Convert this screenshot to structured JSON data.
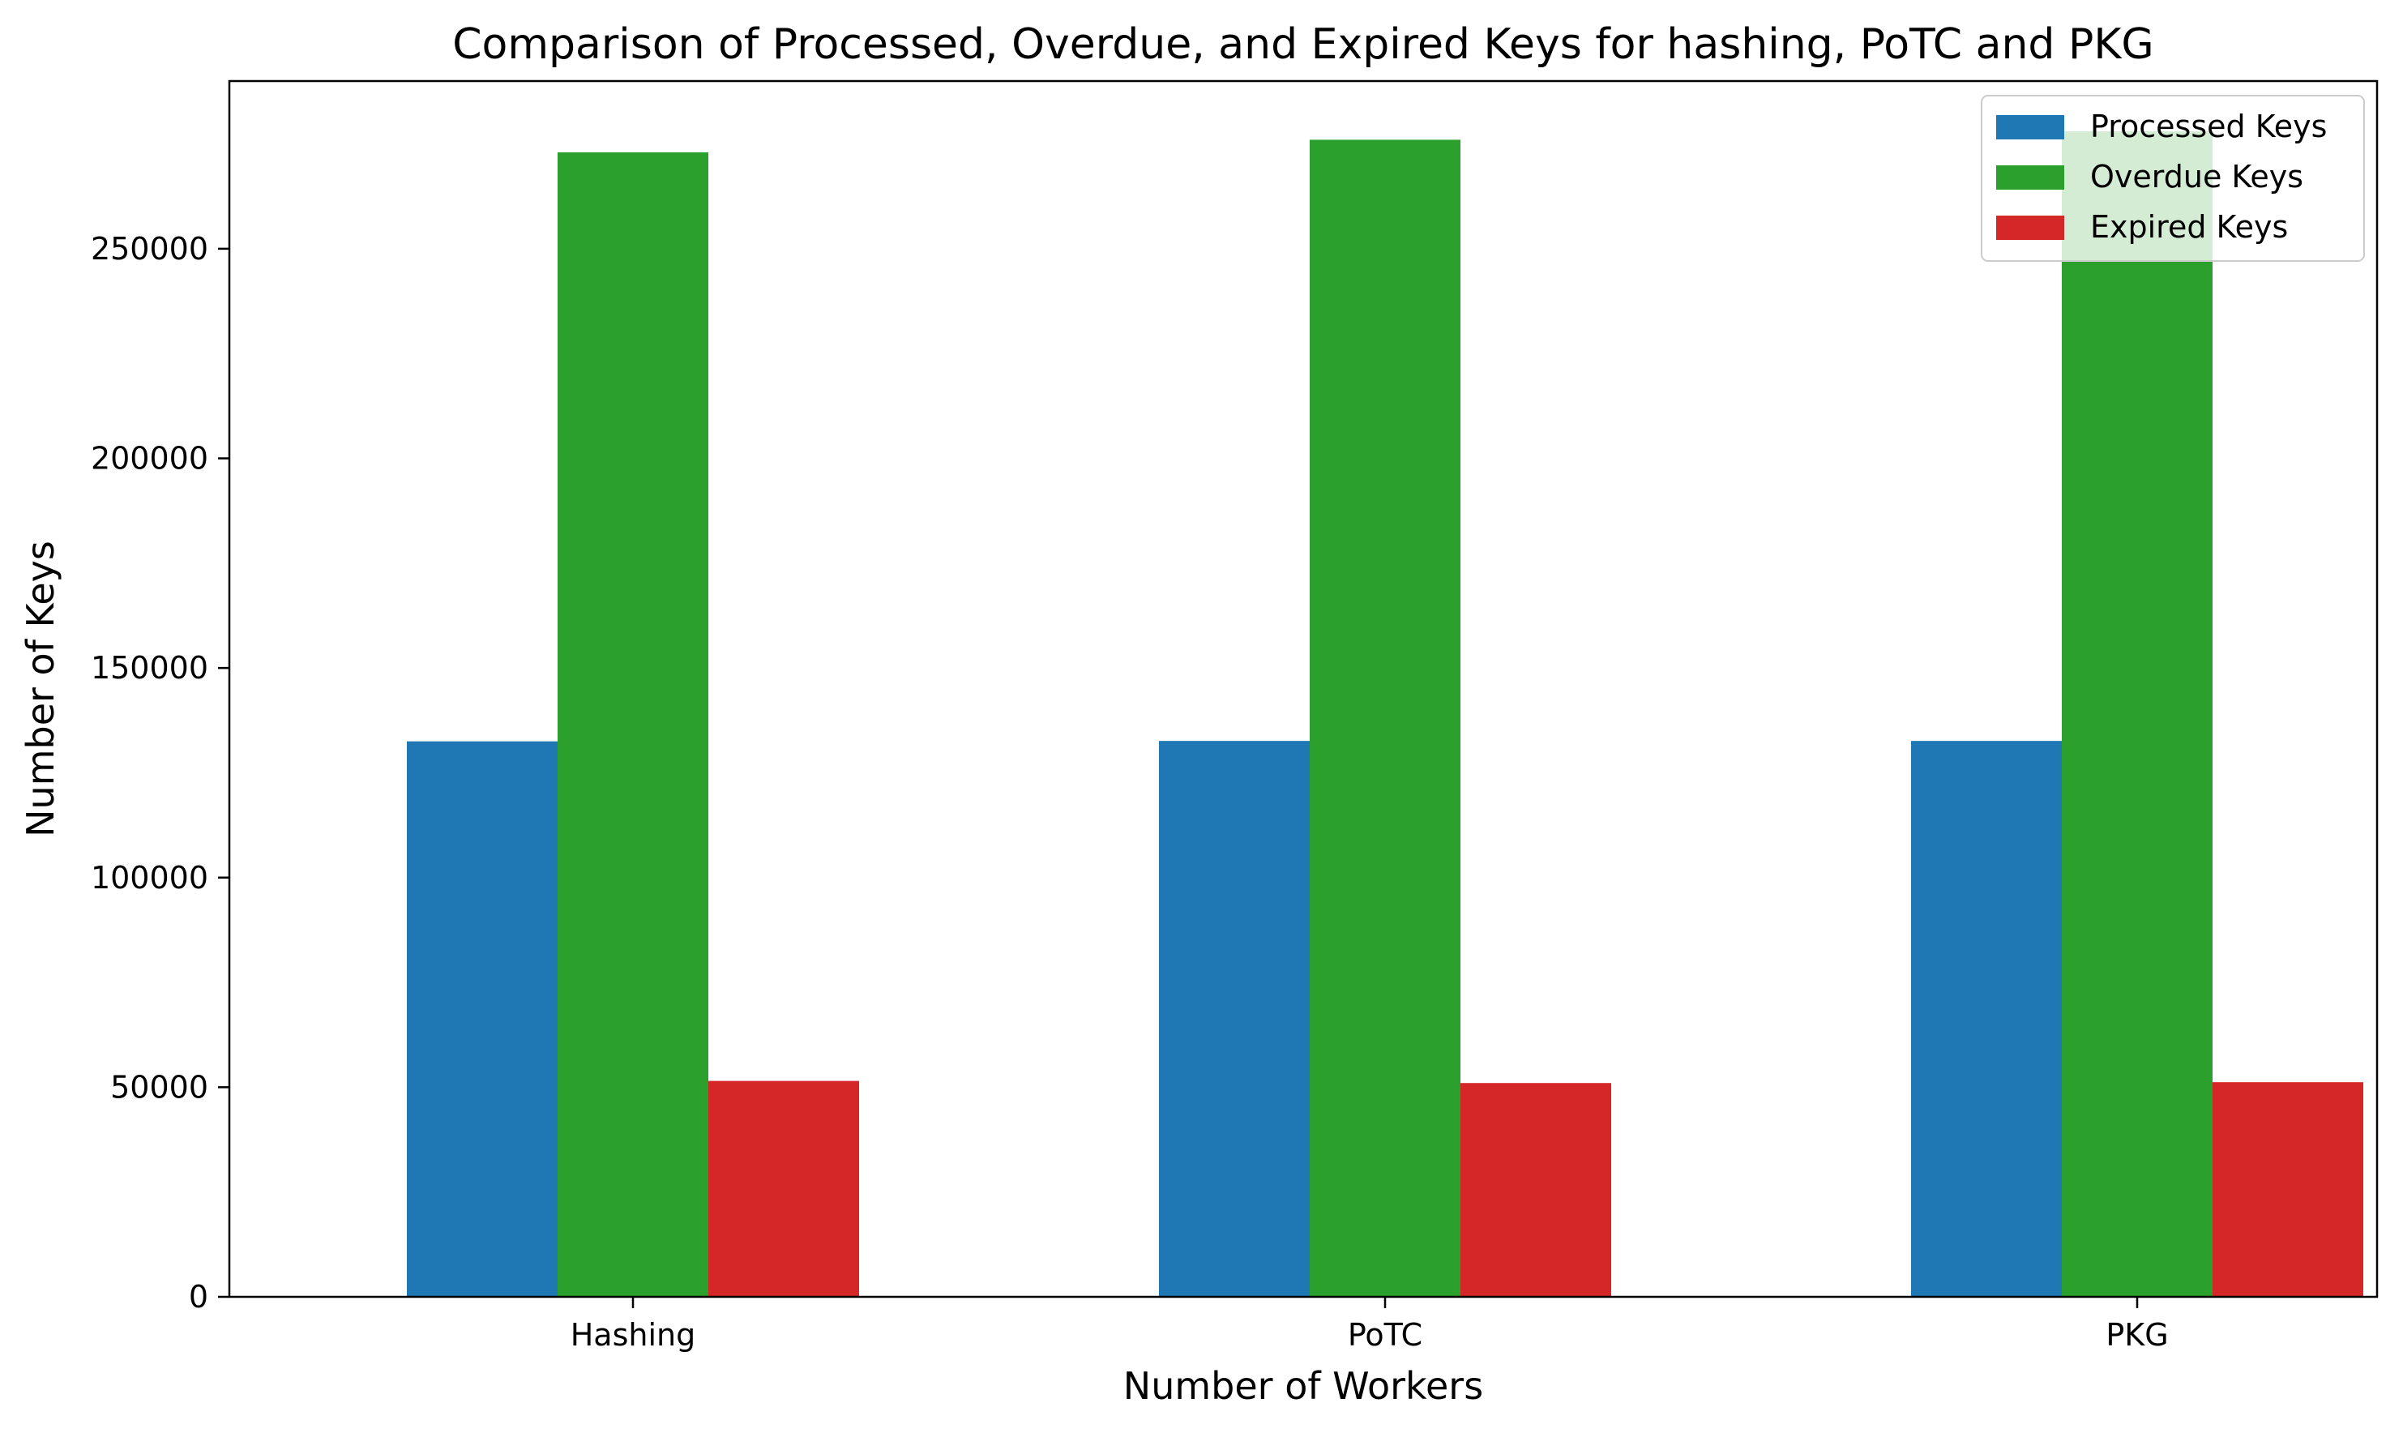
{
  "chart_data": {
    "type": "bar",
    "title": "Comparison of Processed, Overdue, and Expired Keys for hashing, PoTC and PKG",
    "xlabel": "Number of Workers",
    "ylabel": "Number of Keys",
    "categories": [
      "Hashing",
      "PoTC",
      "PKG"
    ],
    "series": [
      {
        "name": "Processed Keys",
        "color": "#1f77b4",
        "values": [
          132500,
          132600,
          132600
        ]
      },
      {
        "name": "Overdue Keys",
        "color": "#2ca02c",
        "values": [
          273000,
          276000,
          278000
        ]
      },
      {
        "name": "Expired Keys",
        "color": "#d62728",
        "values": [
          51500,
          51000,
          51200
        ]
      }
    ],
    "ylim": [
      0,
      290000
    ],
    "yticks": [
      0,
      50000,
      100000,
      150000,
      200000,
      250000
    ],
    "ytick_labels": [
      "0",
      "50000",
      "100000",
      "150000",
      "200000",
      "250000"
    ],
    "grid": false,
    "legend_position": "top-right"
  }
}
